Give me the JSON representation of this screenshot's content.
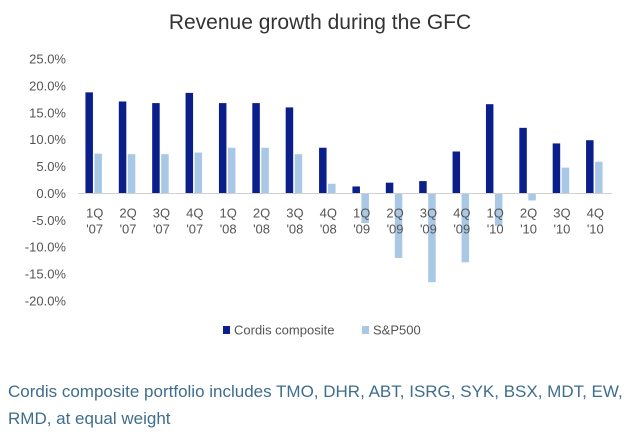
{
  "chart_data": {
    "type": "bar",
    "title": "Revenue growth during the GFC",
    "xlabel": "",
    "ylabel": "",
    "ylim": [
      -20,
      25
    ],
    "yticks": [
      25,
      20,
      15,
      10,
      5,
      0,
      -5,
      -10,
      -15,
      -20
    ],
    "ytick_labels": [
      "25.0%",
      "20.0%",
      "15.0%",
      "10.0%",
      "5.0%",
      "0.0%",
      "-5.0%",
      "-10.0%",
      "-15.0%",
      "-20.0%"
    ],
    "grid": false,
    "legend_position": "bottom-center",
    "categories": [
      [
        "1Q",
        "'07"
      ],
      [
        "2Q",
        "'07"
      ],
      [
        "3Q",
        "'07"
      ],
      [
        "4Q",
        "'07"
      ],
      [
        "1Q",
        "'08"
      ],
      [
        "2Q",
        "'08"
      ],
      [
        "3Q",
        "'08"
      ],
      [
        "4Q",
        "'08"
      ],
      [
        "1Q",
        "'09"
      ],
      [
        "2Q",
        "'09"
      ],
      [
        "3Q",
        "'09"
      ],
      [
        "4Q",
        "'09"
      ],
      [
        "1Q",
        "'10"
      ],
      [
        "2Q",
        "'10"
      ],
      [
        "3Q",
        "'10"
      ],
      [
        "4Q",
        "'10"
      ]
    ],
    "series": [
      {
        "name": "Cordis composite",
        "color": "#0b1f8a",
        "values": [
          18.8,
          17.1,
          16.8,
          18.7,
          16.8,
          16.8,
          16.0,
          8.5,
          1.3,
          2.0,
          2.3,
          7.8,
          16.6,
          12.2,
          9.3,
          9.9
        ]
      },
      {
        "name": "S&P500",
        "color": "#a9c8e6",
        "values": [
          7.4,
          7.3,
          7.3,
          7.6,
          8.5,
          8.5,
          7.3,
          1.8,
          -5.5,
          -12.0,
          -16.5,
          -12.8,
          -6.0,
          -1.3,
          4.8,
          5.9
        ]
      }
    ]
  },
  "caption": "Cordis composite portfolio includes TMO, DHR, ABT, ISRG, SYK, BSX, MDT, EW, RMD, at equal weight"
}
